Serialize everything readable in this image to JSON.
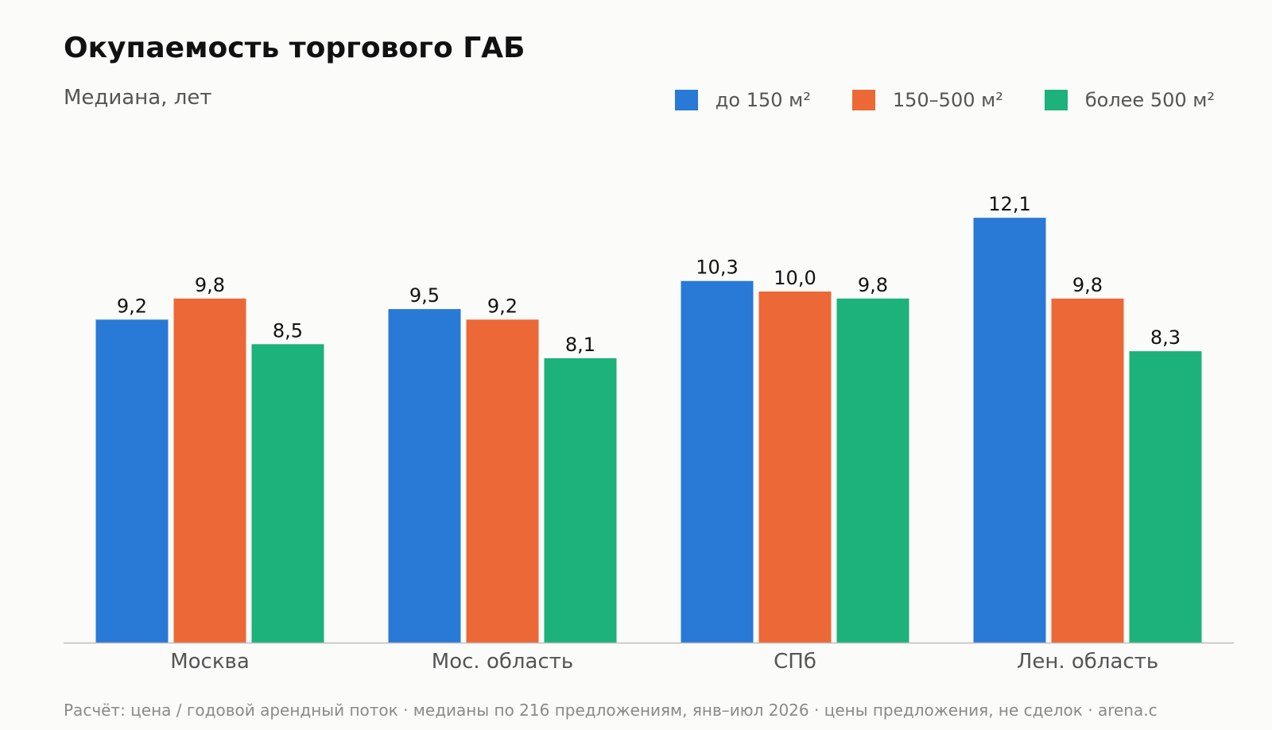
{
  "chart_data": {
    "type": "bar",
    "title": "Окупаемость торгового ГАБ",
    "subtitle": "Медиана, лет",
    "categories": [
      "Москва",
      "Мос. область",
      "СПб",
      "Лен. область"
    ],
    "series": [
      {
        "name": "до 150 м²",
        "color": "#2979d6",
        "values": [
          9.2,
          9.5,
          10.3,
          12.1
        ],
        "labels": [
          "9,2",
          "9,5",
          "10,3",
          "12,1"
        ]
      },
      {
        "name": "150–500 м²",
        "color": "#ec6836",
        "values": [
          9.8,
          9.2,
          10.0,
          9.8
        ],
        "labels": [
          "9,8",
          "9,2",
          "10,0",
          "9,8"
        ]
      },
      {
        "name": "более 500 м²",
        "color": "#1db17b",
        "values": [
          8.5,
          8.1,
          9.8,
          8.3
        ],
        "labels": [
          "8,5",
          "8,1",
          "9,8",
          "8,3"
        ]
      }
    ],
    "ylim": [
      0,
      13
    ],
    "grid": false,
    "legend_position": "top-right",
    "footnote": "Расчёт: цена / годовой арендный поток · медианы по 216 предложениям, янв–июл 2026 · цены предложения, не сделок · arena.c"
  }
}
